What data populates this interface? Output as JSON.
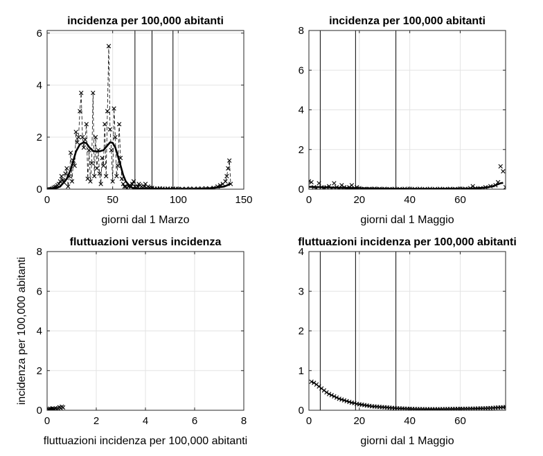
{
  "chart_data": [
    {
      "type": "line",
      "title": "incidenza per 100,000 abitanti",
      "xlabel": "giorni dal 1 Marzo",
      "ylabel": "",
      "xlim": [
        0,
        150
      ],
      "ylim": [
        0,
        6.1
      ],
      "xticks": [
        0,
        50,
        100,
        150
      ],
      "yticks": [
        0,
        2,
        4,
        6
      ],
      "grid": true,
      "vlines": [
        67,
        80,
        96
      ],
      "series": [
        {
          "style": "markers-x-dashed",
          "x": [
            1,
            2,
            3,
            4,
            5,
            6,
            7,
            8,
            9,
            10,
            11,
            12,
            13,
            14,
            15,
            16,
            17,
            18,
            19,
            20,
            21,
            22,
            23,
            24,
            25,
            26,
            27,
            28,
            29,
            30,
            31,
            32,
            33,
            34,
            35,
            36,
            37,
            38,
            39,
            40,
            41,
            42,
            43,
            44,
            45,
            46,
            47,
            48,
            49,
            50,
            51,
            52,
            53,
            54,
            55,
            56,
            57,
            58,
            59,
            60,
            61,
            62,
            63,
            64,
            65,
            66,
            67,
            68,
            69,
            70,
            71,
            72,
            73,
            74,
            75,
            76,
            77,
            78,
            79,
            80,
            82,
            84,
            86,
            88,
            90,
            92,
            94,
            96,
            98,
            100,
            103,
            106,
            109,
            112,
            115,
            118,
            121,
            124,
            127,
            130,
            132,
            134,
            136,
            137,
            138,
            139,
            140
          ],
          "y": [
            0,
            0,
            0,
            0.02,
            0.05,
            0.08,
            0.1,
            0.15,
            0.2,
            0.3,
            0.5,
            0.35,
            0.25,
            0.6,
            0.8,
            0.1,
            0.5,
            1.4,
            0.3,
            1.1,
            0.9,
            2.2,
            1.8,
            2.0,
            3.0,
            3.7,
            2.0,
            1.6,
            1.9,
            2.5,
            0.4,
            1.5,
            0.3,
            1.0,
            3.7,
            0.5,
            2.0,
            0.8,
            1.5,
            0.6,
            0.2,
            1.2,
            0.9,
            2.5,
            0.5,
            3.0,
            5.5,
            2.3,
            1.5,
            0.3,
            3.1,
            2.0,
            0.5,
            0.9,
            2.5,
            1.2,
            0.4,
            0.2,
            0.1,
            0.1,
            0.05,
            0.1,
            0.15,
            0.1,
            0.2,
            0.3,
            0.1,
            0.05,
            0.1,
            0.2,
            0.15,
            0.1,
            0.05,
            0.1,
            0.2,
            0.05,
            0.1,
            0.05,
            0.03,
            0.05,
            0.02,
            0.02,
            0.03,
            0.02,
            0.01,
            0.02,
            0.01,
            0.02,
            0.01,
            0.01,
            0.01,
            0.01,
            0.02,
            0.01,
            0.02,
            0.02,
            0.03,
            0.02,
            0.05,
            0.1,
            0.15,
            0.2,
            0.3,
            0.5,
            0.8,
            1.1,
            0.2
          ]
        },
        {
          "style": "smooth-solid",
          "x": [
            0,
            5,
            10,
            15,
            18,
            20,
            22,
            25,
            28,
            30,
            32,
            35,
            38,
            40,
            43,
            45,
            48,
            50,
            52,
            55,
            58,
            60,
            63,
            65,
            70,
            80,
            90,
            100,
            110,
            120,
            125,
            130,
            135,
            137,
            139,
            140
          ],
          "y": [
            0,
            0.02,
            0.1,
            0.4,
            0.75,
            1.1,
            1.45,
            1.72,
            1.8,
            1.77,
            1.62,
            1.47,
            1.45,
            1.46,
            1.5,
            1.62,
            1.8,
            1.78,
            1.6,
            1.1,
            0.55,
            0.3,
            0.12,
            0.05,
            0.02,
            0.02,
            0.01,
            0.01,
            0.01,
            0.02,
            0.04,
            0.07,
            0.1,
            0.14,
            0.2,
            0.22
          ]
        }
      ]
    },
    {
      "type": "line",
      "title": "incidenza per 100,000 abitanti",
      "xlabel": "giorni dal 1 Maggio",
      "ylabel": "",
      "xlim": [
        0,
        78
      ],
      "ylim": [
        0,
        8
      ],
      "xticks": [
        0,
        20,
        40,
        60
      ],
      "yticks": [
        0,
        2,
        4,
        6,
        8
      ],
      "grid": true,
      "vlines": [
        4.5,
        18.5,
        34.5
      ],
      "series": [
        {
          "style": "markers-x",
          "x": [
            0,
            1,
            2,
            3,
            4,
            5,
            6,
            7,
            8,
            9,
            10,
            11,
            12,
            13,
            14,
            15,
            16,
            17,
            18,
            19,
            20,
            22,
            24,
            26,
            28,
            30,
            32,
            34,
            36,
            38,
            40,
            42,
            44,
            46,
            48,
            50,
            52,
            54,
            56,
            58,
            60,
            62,
            64,
            65,
            66,
            68,
            70,
            72,
            74,
            75,
            76,
            77,
            78
          ],
          "y": [
            0.4,
            0.35,
            0.1,
            0.05,
            0.3,
            0.1,
            0.05,
            0.1,
            0.15,
            0.05,
            0.3,
            0.1,
            0.05,
            0.2,
            0.1,
            0.05,
            0.1,
            0.2,
            0.05,
            0.1,
            0.05,
            0.02,
            0.02,
            0.03,
            0.02,
            0.02,
            0.01,
            0.02,
            0.01,
            0.02,
            0.02,
            0.01,
            0.02,
            0.01,
            0.02,
            0.01,
            0.02,
            0.01,
            0.02,
            0.01,
            0.03,
            0.02,
            0.05,
            0.15,
            0.05,
            0.05,
            0.1,
            0.15,
            0.2,
            0.35,
            1.15,
            0.9,
            0.1
          ]
        },
        {
          "style": "smooth-solid",
          "x": [
            0,
            5,
            10,
            20,
            30,
            40,
            50,
            60,
            65,
            70,
            73,
            75,
            76,
            77
          ],
          "y": [
            0.12,
            0.1,
            0.08,
            0.05,
            0.03,
            0.02,
            0.02,
            0.03,
            0.04,
            0.08,
            0.15,
            0.25,
            0.3,
            0.32
          ]
        }
      ]
    },
    {
      "type": "scatter",
      "title": "fluttuazioni versus incidenza",
      "xlabel": "fluttuazioni incidenza per 100,000 abitanti",
      "ylabel": "incidenza per 100,000 abitanti",
      "xlim": [
        0,
        8
      ],
      "ylim": [
        0,
        8
      ],
      "xticks": [
        0,
        2,
        4,
        6,
        8
      ],
      "yticks": [
        0,
        2,
        4,
        6,
        8
      ],
      "grid": true,
      "vlines": [],
      "series": [
        {
          "style": "markers-x",
          "x": [
            0.05,
            0.08,
            0.1,
            0.12,
            0.15,
            0.18,
            0.2,
            0.22,
            0.25,
            0.28,
            0.3,
            0.35,
            0.4,
            0.45,
            0.5,
            0.55,
            0.6,
            0.65
          ],
          "y": [
            0.02,
            0.05,
            0.01,
            0.08,
            0.03,
            0.06,
            0.02,
            0.1,
            0.04,
            0.07,
            0.05,
            0.09,
            0.06,
            0.1,
            0.15,
            0.12,
            0.18,
            0.14
          ]
        }
      ]
    },
    {
      "type": "line",
      "title": "fluttuazioni incidenza per 100,000 abitanti",
      "xlabel": "giorni dal 1 Maggio",
      "ylabel": "",
      "xlim": [
        0,
        78
      ],
      "ylim": [
        0,
        4
      ],
      "xticks": [
        0,
        20,
        40,
        60
      ],
      "yticks": [
        0,
        1,
        2,
        3,
        4
      ],
      "grid": true,
      "vlines": [
        4.5,
        18.5,
        34.5
      ],
      "series": [
        {
          "style": "markers-x-solid",
          "x": [
            1,
            2,
            3,
            4,
            5,
            6,
            7,
            8,
            9,
            10,
            11,
            12,
            13,
            14,
            15,
            16,
            17,
            18,
            19,
            20,
            21,
            22,
            23,
            24,
            25,
            26,
            27,
            28,
            29,
            30,
            31,
            32,
            33,
            34,
            35,
            36,
            37,
            38,
            39,
            40,
            41,
            42,
            43,
            44,
            45,
            46,
            47,
            48,
            49,
            50,
            51,
            52,
            53,
            54,
            55,
            56,
            57,
            58,
            59,
            60,
            61,
            62,
            63,
            64,
            65,
            66,
            67,
            68,
            69,
            70,
            71,
            72,
            73,
            74,
            75,
            76,
            77,
            78
          ],
          "y": [
            0.72,
            0.69,
            0.65,
            0.6,
            0.55,
            0.5,
            0.45,
            0.41,
            0.38,
            0.35,
            0.32,
            0.29,
            0.27,
            0.25,
            0.23,
            0.21,
            0.19,
            0.18,
            0.16,
            0.15,
            0.14,
            0.13,
            0.12,
            0.11,
            0.1,
            0.095,
            0.09,
            0.085,
            0.08,
            0.075,
            0.07,
            0.065,
            0.06,
            0.055,
            0.05,
            0.047,
            0.044,
            0.041,
            0.038,
            0.036,
            0.034,
            0.032,
            0.03,
            0.03,
            0.029,
            0.028,
            0.028,
            0.028,
            0.028,
            0.028,
            0.028,
            0.028,
            0.029,
            0.03,
            0.031,
            0.032,
            0.033,
            0.034,
            0.035,
            0.036,
            0.037,
            0.038,
            0.039,
            0.04,
            0.041,
            0.042,
            0.044,
            0.046,
            0.048,
            0.05,
            0.053,
            0.056,
            0.06,
            0.064,
            0.068,
            0.072,
            0.076,
            0.08
          ]
        }
      ]
    }
  ]
}
